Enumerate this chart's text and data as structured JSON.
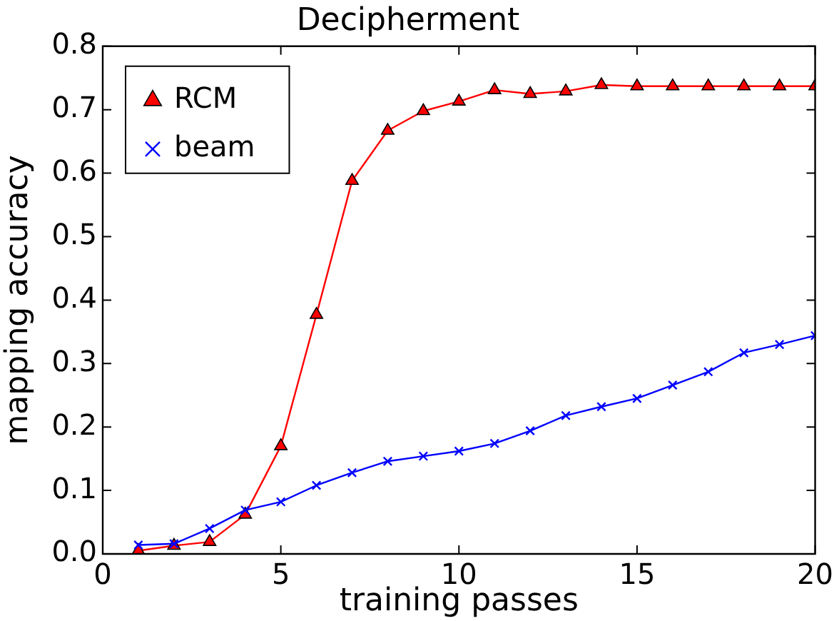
{
  "chart_data": {
    "type": "line",
    "title": "Decipherment",
    "xlabel": "training passes",
    "ylabel": "mapping accuracy",
    "x": [
      1,
      2,
      3,
      4,
      5,
      6,
      7,
      8,
      9,
      10,
      11,
      12,
      13,
      14,
      15,
      16,
      17,
      18,
      19,
      20
    ],
    "series": [
      {
        "name": "RCM",
        "color": "#ff0000",
        "marker": "triangle",
        "values": [
          0.005,
          0.013,
          0.019,
          0.062,
          0.17,
          0.377,
          0.588,
          0.667,
          0.698,
          0.713,
          0.731,
          0.725,
          0.729,
          0.739,
          0.737,
          0.737,
          0.737,
          0.737,
          0.737,
          0.737
        ]
      },
      {
        "name": "beam",
        "color": "#0000ff",
        "marker": "cross",
        "values": [
          0.014,
          0.016,
          0.04,
          0.069,
          0.082,
          0.108,
          0.128,
          0.146,
          0.154,
          0.162,
          0.174,
          0.194,
          0.218,
          0.232,
          0.245,
          0.266,
          0.287,
          0.317,
          0.33,
          0.344
        ]
      }
    ],
    "xlim": [
      0,
      20
    ],
    "xticks": [
      0,
      5,
      10,
      15,
      20
    ],
    "ylim": [
      0,
      0.8
    ],
    "yticks": [
      {
        "value": 0,
        "label": "0.0"
      },
      0.1,
      0.2,
      0.3,
      0.4,
      0.5,
      0.6,
      0.7,
      0.8
    ],
    "grid": false,
    "legend": "top left",
    "line_style": "solid"
  }
}
